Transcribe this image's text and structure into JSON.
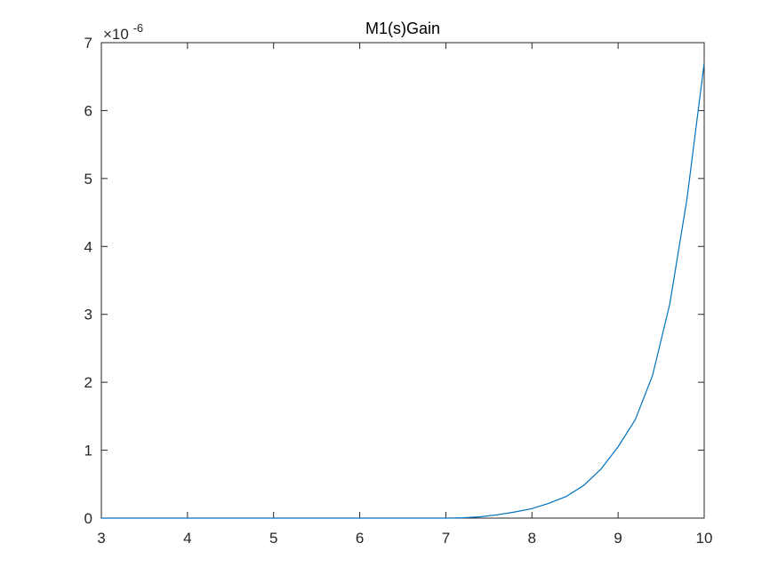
{
  "chart_data": {
    "type": "line",
    "title": "M1(s)Gain",
    "xlabel": "",
    "ylabel": "",
    "xlim": [
      3,
      10
    ],
    "ylim": [
      0,
      7
    ],
    "xticks": [
      3,
      4,
      5,
      6,
      7,
      8,
      9,
      10
    ],
    "yticks": [
      0,
      1,
      2,
      3,
      4,
      5,
      6,
      7
    ],
    "y_multiplier_base": "×10",
    "y_multiplier_exponent": "-6",
    "grid": false,
    "colors": {
      "line": "#0072BD",
      "axes": "#262626"
    },
    "series": [
      {
        "x": [
          3,
          4,
          5,
          6,
          7,
          7.2,
          7.4,
          7.6,
          7.8,
          8.0,
          8.2,
          8.4,
          8.6,
          8.8,
          9.0,
          9.2,
          9.4,
          9.6,
          9.8,
          10.0
        ],
        "y": [
          0,
          0,
          0,
          0,
          0,
          0.005,
          0.02,
          0.05,
          0.09,
          0.14,
          0.22,
          0.32,
          0.48,
          0.72,
          1.05,
          1.45,
          2.1,
          3.15,
          4.7,
          6.7
        ]
      }
    ]
  }
}
